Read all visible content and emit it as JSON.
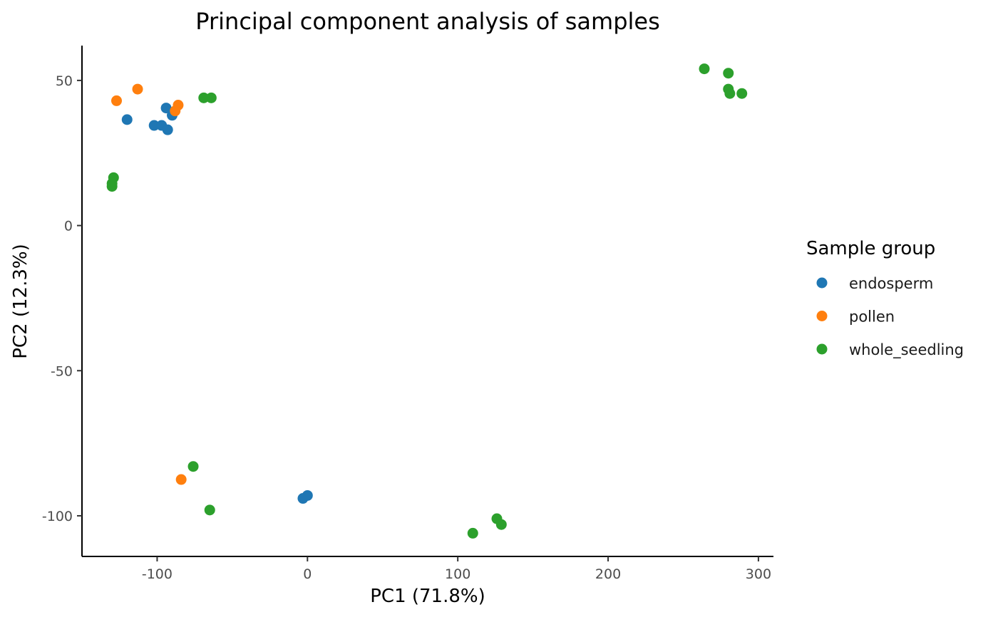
{
  "chart_data": {
    "type": "scatter",
    "title": "Principal component analysis of samples",
    "xlabel": "PC1 (71.8%)",
    "ylabel": "PC2 (12.3%)",
    "xlim": [
      -150,
      310
    ],
    "ylim": [
      -114,
      62
    ],
    "xticks": [
      -100,
      0,
      100,
      200,
      300
    ],
    "xtick_labels": [
      "-100",
      "0",
      "100",
      "200",
      "300"
    ],
    "yticks": [
      -100,
      -50,
      0,
      50
    ],
    "ytick_labels": [
      "-100",
      "-50",
      "0",
      "50"
    ],
    "grid": false,
    "legend": {
      "title": "Sample group",
      "position": "right"
    },
    "series": [
      {
        "name": "endosperm",
        "color": "#1f77b4",
        "points": [
          {
            "x": -120,
            "y": 36.5
          },
          {
            "x": -94,
            "y": 40.5
          },
          {
            "x": -90,
            "y": 38.0
          },
          {
            "x": -102,
            "y": 34.5
          },
          {
            "x": -97,
            "y": 34.5
          },
          {
            "x": -93,
            "y": 33.0
          },
          {
            "x": -3,
            "y": -94.0
          },
          {
            "x": 0,
            "y": -93.0
          }
        ]
      },
      {
        "name": "pollen",
        "color": "#ff7f0e",
        "points": [
          {
            "x": -127,
            "y": 43.0
          },
          {
            "x": -113,
            "y": 47.0
          },
          {
            "x": -86,
            "y": 41.5
          },
          {
            "x": -88,
            "y": 39.5
          },
          {
            "x": -84,
            "y": -87.5
          }
        ]
      },
      {
        "name": "whole_seedling",
        "color": "#2ca02c",
        "points": [
          {
            "x": -129,
            "y": 16.5
          },
          {
            "x": -130,
            "y": 14.5
          },
          {
            "x": -130,
            "y": 13.5
          },
          {
            "x": -69,
            "y": 44.0
          },
          {
            "x": -64,
            "y": 44.0
          },
          {
            "x": -76,
            "y": -83.0
          },
          {
            "x": -65,
            "y": -98.0
          },
          {
            "x": 110,
            "y": -106.0
          },
          {
            "x": 126,
            "y": -101.0
          },
          {
            "x": 129,
            "y": -103.0
          },
          {
            "x": 264,
            "y": 54.0
          },
          {
            "x": 280,
            "y": 52.5
          },
          {
            "x": 280,
            "y": 47.0
          },
          {
            "x": 281,
            "y": 45.5
          },
          {
            "x": 289,
            "y": 45.5
          }
        ]
      }
    ]
  }
}
